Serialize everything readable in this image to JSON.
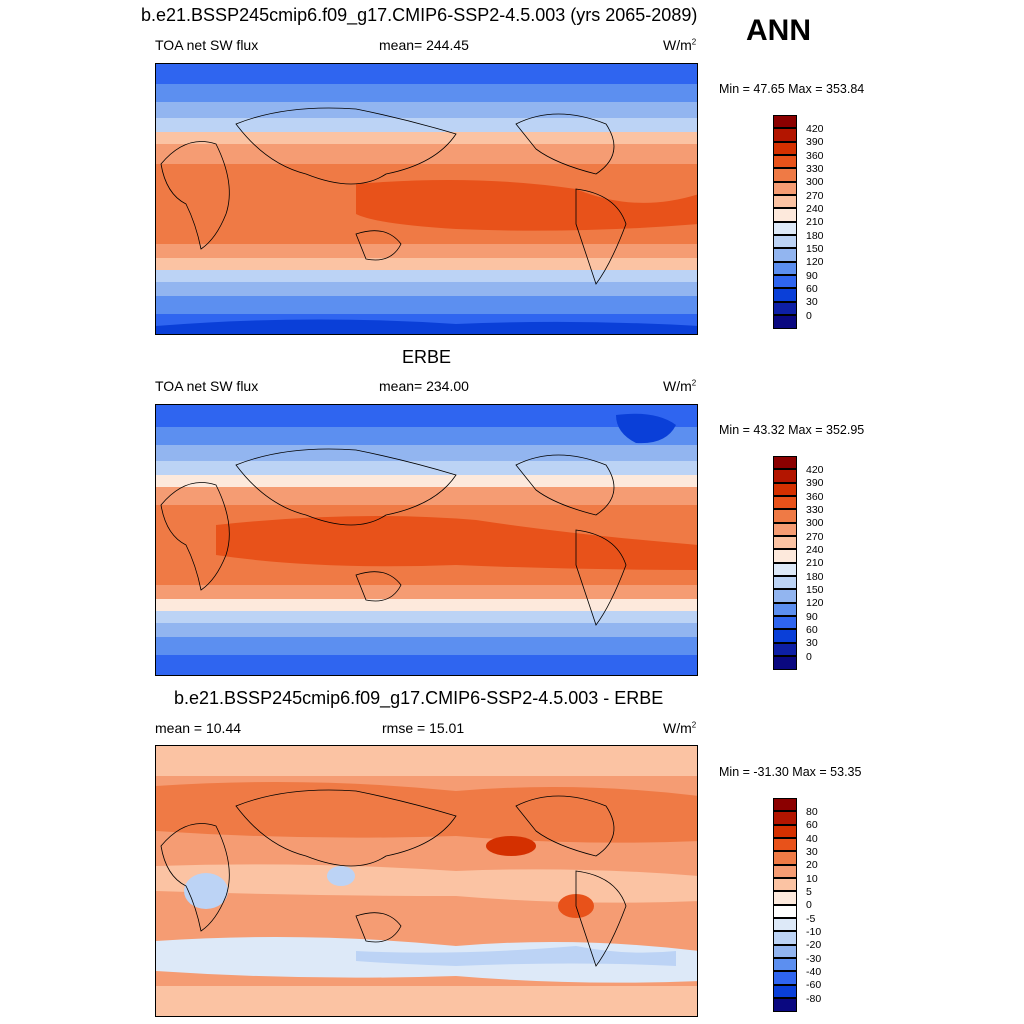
{
  "header": {
    "season": "ANN"
  },
  "panels": [
    {
      "title": "b.e21.BSSP245cmip6.f09_g17.CMIP6-SSP2-4.5.003 (yrs 2065-2089)",
      "left": "TOA net SW flux",
      "center": "mean= 244.45",
      "units": "W/m",
      "units_sup": "2",
      "minmax": "Min =  47.65 Max = 353.84",
      "colorbar_labels": [
        "420",
        "390",
        "360",
        "330",
        "300",
        "270",
        "240",
        "210",
        "180",
        "150",
        "120",
        "90",
        "60",
        "30",
        "0"
      ]
    },
    {
      "title": "ERBE",
      "left": "TOA net SW flux",
      "center": "mean= 234.00",
      "units": "W/m",
      "units_sup": "2",
      "minmax": "Min =  43.32 Max = 352.95",
      "colorbar_labels": [
        "420",
        "390",
        "360",
        "330",
        "300",
        "270",
        "240",
        "210",
        "180",
        "150",
        "120",
        "90",
        "60",
        "30",
        "0"
      ]
    },
    {
      "title": "b.e21.BSSP245cmip6.f09_g17.CMIP6-SSP2-4.5.003 - ERBE",
      "left": "mean =  10.44",
      "center": "rmse =  15.01",
      "units": "W/m",
      "units_sup": "2",
      "minmax": "Min = -31.30 Max =  53.35",
      "colorbar_labels": [
        "80",
        "60",
        "40",
        "30",
        "20",
        "10",
        "5",
        "0",
        "-5",
        "-10",
        "-20",
        "-30",
        "-40",
        "-60",
        "-80"
      ]
    }
  ],
  "colors": {
    "colorbar": [
      "#8b0000",
      "#b31500",
      "#d43000",
      "#e8521a",
      "#ef7a45",
      "#f59c73",
      "#fbc3a3",
      "#fde9dc",
      "#dde9f8",
      "#bcd3f5",
      "#92b5f0",
      "#5c8ff0",
      "#2f65f0",
      "#0a3fd8",
      "#0d1fa5",
      "#0a0880"
    ],
    "diff_cb": [
      "#8b0000",
      "#b31500",
      "#d43000",
      "#e8521a",
      "#ef7a45",
      "#f59c73",
      "#fbc3a3",
      "#fde9dc",
      "#ffffff",
      "#dde9f8",
      "#bcd3f5",
      "#92b5f0",
      "#5c8ff0",
      "#2f65f0",
      "#0a3fd8",
      "#0a0880"
    ]
  }
}
